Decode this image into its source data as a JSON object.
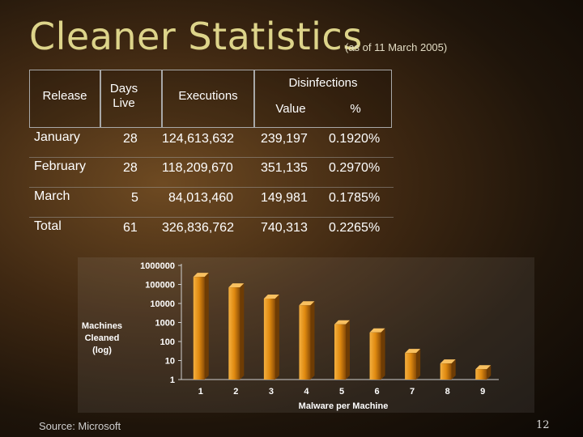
{
  "slide": {
    "title": "Cleaner Statistics",
    "subtitle": "(as of 11 March 2005)",
    "source": "Source: Microsoft",
    "page_number": "12"
  },
  "table": {
    "headers": {
      "release": "Release",
      "days_live": "Days Live",
      "executions": "Executions",
      "disinfections": "Disinfections",
      "value": "Value",
      "percent": "%"
    },
    "rows": [
      {
        "release": "January",
        "days": "28",
        "executions": "124,613,632",
        "value": "239,197",
        "percent": "0.1920%"
      },
      {
        "release": "February",
        "days": "28",
        "executions": "118,209,670",
        "value": "351,135",
        "percent": "0.2970%"
      },
      {
        "release": "March",
        "days": "5",
        "executions": "84,013,460",
        "value": "149,981",
        "percent": "0.1785%"
      },
      {
        "release": "Total",
        "days": "61",
        "executions": "326,836,762",
        "value": "740,313",
        "percent": "0.2265%"
      }
    ]
  },
  "chart_data": {
    "type": "bar",
    "categories": [
      "1",
      "2",
      "3",
      "4",
      "5",
      "6",
      "7",
      "8",
      "9"
    ],
    "values": [
      250000,
      70000,
      18000,
      8000,
      800,
      300,
      25,
      7,
      3.5
    ],
    "xlabel": "Malware per Machine",
    "ylabel": "Machines Cleaned (log)",
    "ylabel_lines": [
      "Machines",
      "Cleaned",
      "(log)"
    ],
    "y_scale": "log",
    "ylim": [
      1,
      1000000
    ],
    "y_ticks": [
      1,
      10,
      100,
      1000,
      10000,
      100000,
      1000000
    ],
    "y_tick_labels": [
      "1",
      "10",
      "100",
      "1000",
      "10000",
      "100000",
      "1000000"
    ],
    "grid": false,
    "legend": "none",
    "bar_color": "#e08a10"
  }
}
